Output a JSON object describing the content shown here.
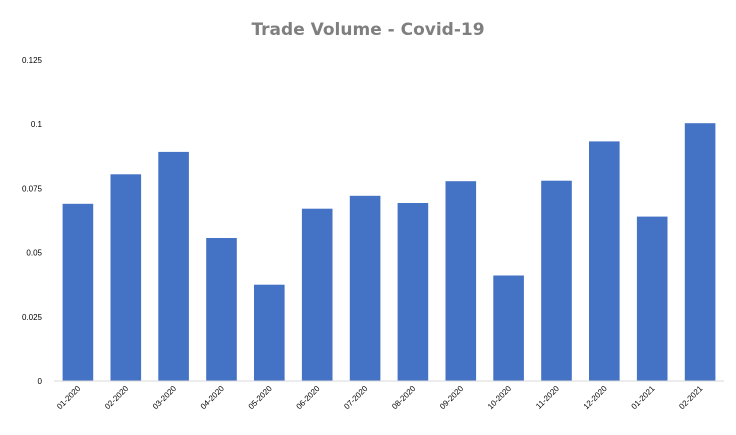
{
  "chart_data": {
    "type": "bar",
    "title": "Trade Volume - Covid-19",
    "xlabel": "",
    "ylabel": "",
    "categories": [
      "01-2020",
      "02-2020",
      "03-2020",
      "04-2020",
      "05-2020",
      "06-2020",
      "07-2020",
      "08-2020",
      "09-2020",
      "10-2020",
      "11-2020",
      "12-2020",
      "01-2021",
      "02-2021"
    ],
    "values": [
      0.069,
      0.0805,
      0.0892,
      0.0557,
      0.0375,
      0.0671,
      0.0721,
      0.0693,
      0.0778,
      0.0411,
      0.078,
      0.0933,
      0.064,
      0.1004
    ],
    "ylim": [
      0,
      0.125
    ],
    "yticks": [
      "0",
      "0.025",
      "0.05",
      "0.075",
      "0.1",
      "0.125"
    ],
    "grid": false,
    "legend": "none",
    "bar_color": "#4472c4"
  }
}
